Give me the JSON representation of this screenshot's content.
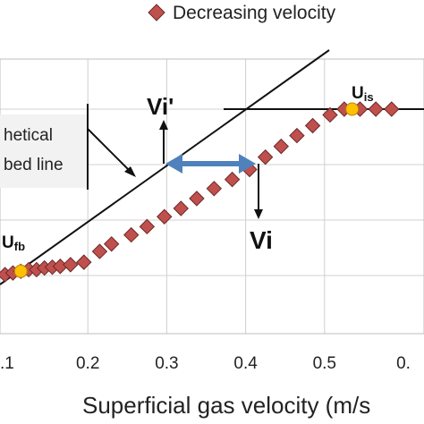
{
  "chart_data": {
    "type": "scatter",
    "xlabel": "Superficial gas velocity (m/s",
    "x_tick_labels": [
      ".1",
      "0.2",
      "0.3",
      "0.4",
      "0.5",
      "0."
    ],
    "xlim": [
      0.1,
      0.6
    ],
    "legend": {
      "position": "top",
      "entries": [
        "Decreasing velocity"
      ]
    },
    "grid": true,
    "series": [
      {
        "name": "Decreasing velocity",
        "color": "#c0504d",
        "marker": "diamond",
        "points": [
          {
            "x": 0.095,
            "y": 0.0
          },
          {
            "x": 0.105,
            "y": 0.02
          },
          {
            "x": 0.115,
            "y": 0.04
          },
          {
            "x": 0.125,
            "y": 0.06
          },
          {
            "x": 0.135,
            "y": 0.06
          },
          {
            "x": 0.145,
            "y": 0.08
          },
          {
            "x": 0.155,
            "y": 0.09
          },
          {
            "x": 0.165,
            "y": 0.1
          },
          {
            "x": 0.178,
            "y": 0.12
          },
          {
            "x": 0.195,
            "y": 0.15
          },
          {
            "x": 0.215,
            "y": 0.28
          },
          {
            "x": 0.23,
            "y": 0.37
          },
          {
            "x": 0.255,
            "y": 0.48
          },
          {
            "x": 0.275,
            "y": 0.58
          },
          {
            "x": 0.297,
            "y": 0.7
          },
          {
            "x": 0.318,
            "y": 0.8
          },
          {
            "x": 0.338,
            "y": 0.92
          },
          {
            "x": 0.36,
            "y": 1.04
          },
          {
            "x": 0.383,
            "y": 1.15
          },
          {
            "x": 0.405,
            "y": 1.27
          },
          {
            "x": 0.425,
            "y": 1.42
          },
          {
            "x": 0.445,
            "y": 1.55
          },
          {
            "x": 0.465,
            "y": 1.68
          },
          {
            "x": 0.485,
            "y": 1.8
          },
          {
            "x": 0.507,
            "y": 1.93
          },
          {
            "x": 0.525,
            "y": 2.0
          },
          {
            "x": 0.545,
            "y": 2.0
          },
          {
            "x": 0.565,
            "y": 2.0
          },
          {
            "x": 0.585,
            "y": 2.0
          }
        ]
      }
    ],
    "key_points": [
      {
        "label": "Ufb",
        "x": 0.115,
        "y": 0.04,
        "color": "#ffc000"
      },
      {
        "label": "Uis",
        "x": 0.535,
        "y": 2.0,
        "color": "#ffc000"
      }
    ],
    "annotations": {
      "vi_prime": "Vi'",
      "vi": "Vi",
      "callout_lines": [
        "hetical",
        "bed line"
      ]
    }
  }
}
